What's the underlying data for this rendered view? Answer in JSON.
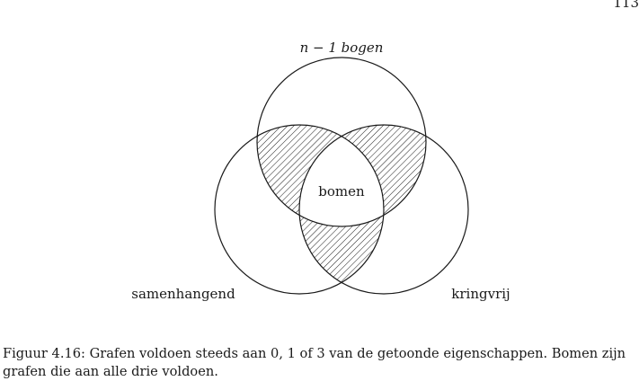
{
  "page": {
    "number": "113"
  },
  "figure": {
    "labels": {
      "top": "n − 1 bogen",
      "left": "samenhangend",
      "right": "kringvrij",
      "center": "bomen"
    },
    "colors": {
      "stroke": "#1a1a1a",
      "hatch": "#1a1a1a",
      "background": "#ffffff"
    },
    "caption": "Figuur 4.16: Grafen voldoen steeds aan 0, 1 of 3 van de getoonde eigenschappen. Bomen zijn grafen die aan alle drie voldoen."
  }
}
